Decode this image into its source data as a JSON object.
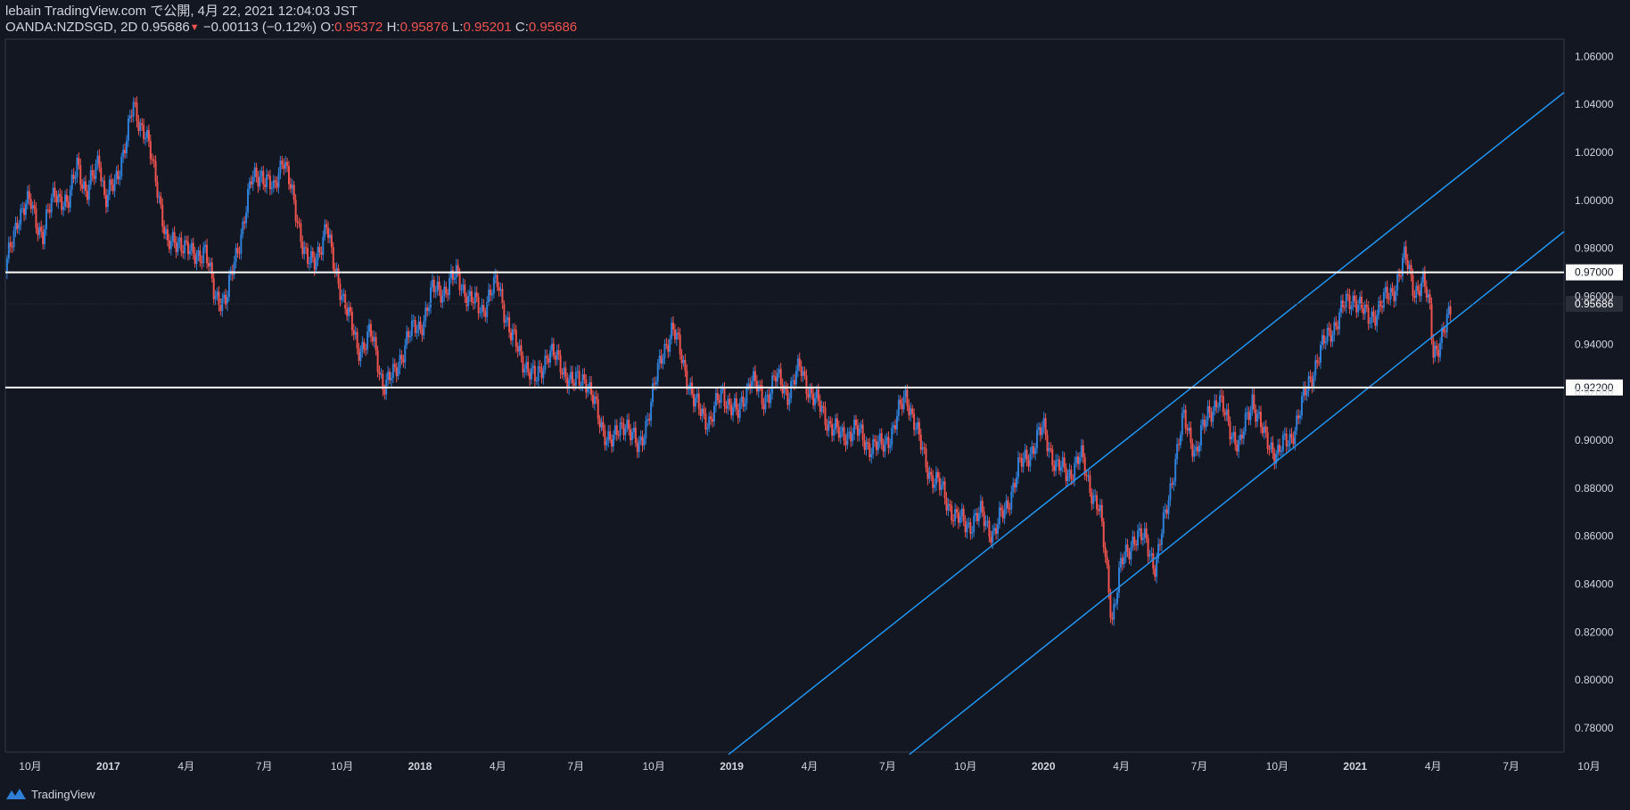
{
  "header": {
    "line1": "lebain TradingView.com で公開, 4月 22, 2021 12:04:03 JST",
    "symbol": "OANDA:NZDSGD, 2D",
    "last": "0.95686",
    "arrow": "▼",
    "change": "−0.00113 (−0.12%)",
    "o_label": "O:",
    "o_value": "0.95372",
    "h_label": "H:",
    "h_value": "0.95876",
    "l_label": "L:",
    "l_value": "0.95201",
    "c_label": "C:",
    "c_value": "0.95686"
  },
  "footer": {
    "brand": "TradingView"
  },
  "colors": {
    "background": "#131722",
    "up": "#2f7fd6",
    "down": "#ef5350",
    "line": "#ffffff",
    "trend": "#2196f3",
    "axis": "#363a45",
    "text": "#d1d4dc"
  },
  "chart_data": {
    "type": "candlestick",
    "title": "OANDA:NZDSGD, 2D",
    "ylim": [
      0.77,
      1.0672
    ],
    "y_ticks": [
      0.78,
      0.8,
      0.82,
      0.84,
      0.86,
      0.88,
      0.9,
      0.92,
      0.94,
      0.96,
      0.98,
      1.0,
      1.02,
      1.04,
      1.06
    ],
    "y_tick_labels": [
      "0.78000",
      "0.80000",
      "0.82000",
      "0.84000",
      "0.86000",
      "0.88000",
      "0.90000",
      "0.92000",
      "0.94000",
      "0.96000",
      "0.98000",
      "1.00000",
      "1.02000",
      "1.04000",
      "1.06000"
    ],
    "x_range": [
      2016.67,
      2021.67
    ],
    "x_ticks": [
      {
        "t": 2016.75,
        "label": "10月"
      },
      {
        "t": 2017.0,
        "label": "2017"
      },
      {
        "t": 2017.25,
        "label": "4月"
      },
      {
        "t": 2017.5,
        "label": "7月"
      },
      {
        "t": 2017.75,
        "label": "10月"
      },
      {
        "t": 2018.0,
        "label": "2018"
      },
      {
        "t": 2018.25,
        "label": "4月"
      },
      {
        "t": 2018.5,
        "label": "7月"
      },
      {
        "t": 2018.75,
        "label": "10月"
      },
      {
        "t": 2019.0,
        "label": "2019"
      },
      {
        "t": 2019.25,
        "label": "4月"
      },
      {
        "t": 2019.5,
        "label": "7月"
      },
      {
        "t": 2019.75,
        "label": "10月"
      },
      {
        "t": 2020.0,
        "label": "2020"
      },
      {
        "t": 2020.25,
        "label": "4月"
      },
      {
        "t": 2020.5,
        "label": "7月"
      },
      {
        "t": 2020.75,
        "label": "10月"
      },
      {
        "t": 2021.0,
        "label": "2021"
      },
      {
        "t": 2021.25,
        "label": "4月"
      },
      {
        "t": 2021.5,
        "label": "7月"
      },
      {
        "t": 2021.75,
        "label": "10月"
      }
    ],
    "price_path": [
      [
        2016.67,
        0.97
      ],
      [
        2016.71,
        0.994
      ],
      [
        2016.75,
        0.999
      ],
      [
        2016.79,
        0.985
      ],
      [
        2016.83,
        1.005
      ],
      [
        2016.87,
        0.996
      ],
      [
        2016.9,
        1.018
      ],
      [
        2016.93,
        1.0
      ],
      [
        2016.97,
        1.02
      ],
      [
        2016.99,
        0.998
      ],
      [
        2017.02,
        1.008
      ],
      [
        2017.06,
        1.025
      ],
      [
        2017.08,
        1.04
      ],
      [
        2017.12,
        1.027
      ],
      [
        2017.16,
        1.005
      ],
      [
        2017.19,
        0.98
      ],
      [
        2017.23,
        0.984
      ],
      [
        2017.27,
        0.976
      ],
      [
        2017.31,
        0.98
      ],
      [
        2017.34,
        0.96
      ],
      [
        2017.38,
        0.959
      ],
      [
        2017.42,
        0.983
      ],
      [
        2017.46,
        1.008
      ],
      [
        2017.49,
        1.012
      ],
      [
        2017.53,
        1.003
      ],
      [
        2017.56,
        1.02
      ],
      [
        2017.6,
        0.995
      ],
      [
        2017.64,
        0.975
      ],
      [
        2017.66,
        0.972
      ],
      [
        2017.7,
        0.991
      ],
      [
        2017.72,
        0.973
      ],
      [
        2017.76,
        0.958
      ],
      [
        2017.8,
        0.937
      ],
      [
        2017.84,
        0.945
      ],
      [
        2017.88,
        0.924
      ],
      [
        2017.92,
        0.927
      ],
      [
        2017.96,
        0.944
      ],
      [
        2018.0,
        0.947
      ],
      [
        2018.04,
        0.962
      ],
      [
        2018.08,
        0.963
      ],
      [
        2018.12,
        0.969
      ],
      [
        2018.16,
        0.958
      ],
      [
        2018.2,
        0.955
      ],
      [
        2018.25,
        0.966
      ],
      [
        2018.29,
        0.944
      ],
      [
        2018.33,
        0.934
      ],
      [
        2018.37,
        0.924
      ],
      [
        2018.41,
        0.937
      ],
      [
        2018.45,
        0.932
      ],
      [
        2018.49,
        0.923
      ],
      [
        2018.53,
        0.927
      ],
      [
        2018.58,
        0.906
      ],
      [
        2018.62,
        0.899
      ],
      [
        2018.66,
        0.909
      ],
      [
        2018.7,
        0.895
      ],
      [
        2018.74,
        0.915
      ],
      [
        2018.78,
        0.938
      ],
      [
        2018.81,
        0.946
      ],
      [
        2018.84,
        0.935
      ],
      [
        2018.88,
        0.915
      ],
      [
        2018.93,
        0.908
      ],
      [
        2018.97,
        0.92
      ],
      [
        2019.02,
        0.91
      ],
      [
        2019.06,
        0.927
      ],
      [
        2019.1,
        0.916
      ],
      [
        2019.14,
        0.926
      ],
      [
        2019.18,
        0.92
      ],
      [
        2019.22,
        0.93
      ],
      [
        2019.26,
        0.918
      ],
      [
        2019.31,
        0.908
      ],
      [
        2019.35,
        0.901
      ],
      [
        2019.39,
        0.905
      ],
      [
        2019.44,
        0.898
      ],
      [
        2019.48,
        0.897
      ],
      [
        2019.52,
        0.905
      ],
      [
        2019.56,
        0.92
      ],
      [
        2019.6,
        0.9
      ],
      [
        2019.64,
        0.885
      ],
      [
        2019.68,
        0.878
      ],
      [
        2019.72,
        0.867
      ],
      [
        2019.76,
        0.865
      ],
      [
        2019.8,
        0.869
      ],
      [
        2019.84,
        0.861
      ],
      [
        2019.88,
        0.872
      ],
      [
        2019.92,
        0.888
      ],
      [
        2019.96,
        0.896
      ],
      [
        2020.0,
        0.905
      ],
      [
        2020.04,
        0.889
      ],
      [
        2020.08,
        0.886
      ],
      [
        2020.12,
        0.893
      ],
      [
        2020.15,
        0.881
      ],
      [
        2020.18,
        0.87
      ],
      [
        2020.2,
        0.85
      ],
      [
        2020.22,
        0.826
      ],
      [
        2020.25,
        0.848
      ],
      [
        2020.29,
        0.86
      ],
      [
        2020.33,
        0.858
      ],
      [
        2020.36,
        0.847
      ],
      [
        2020.39,
        0.868
      ],
      [
        2020.42,
        0.89
      ],
      [
        2020.45,
        0.909
      ],
      [
        2020.49,
        0.895
      ],
      [
        2020.53,
        0.912
      ],
      [
        2020.56,
        0.917
      ],
      [
        2020.6,
        0.905
      ],
      [
        2020.63,
        0.897
      ],
      [
        2020.67,
        0.918
      ],
      [
        2020.71,
        0.9
      ],
      [
        2020.75,
        0.895
      ],
      [
        2020.79,
        0.9
      ],
      [
        2020.83,
        0.915
      ],
      [
        2020.88,
        0.935
      ],
      [
        2020.92,
        0.945
      ],
      [
        2020.96,
        0.955
      ],
      [
        2021.0,
        0.96
      ],
      [
        2021.04,
        0.95
      ],
      [
        2021.08,
        0.956
      ],
      [
        2021.12,
        0.962
      ],
      [
        2021.16,
        0.976
      ],
      [
        2021.19,
        0.963
      ],
      [
        2021.22,
        0.965
      ],
      [
        2021.24,
        0.954
      ],
      [
        2021.25,
        0.938
      ],
      [
        2021.27,
        0.94
      ],
      [
        2021.29,
        0.946
      ],
      [
        2021.31,
        0.957
      ]
    ],
    "horizontal_lines": [
      {
        "price": 0.97,
        "label": "0.97000"
      },
      {
        "price": 0.922,
        "label": "0.92200"
      }
    ],
    "last_price_label": "0.95686",
    "last_price": 0.95686,
    "channel": [
      {
        "name": "upper-channel-line",
        "from": {
          "t": 2018.99,
          "p": 0.769
        },
        "to": {
          "t": 2021.67,
          "p": 1.045
        }
      },
      {
        "name": "lower-channel-line",
        "from": {
          "t": 2019.57,
          "p": 0.769
        },
        "to": {
          "t": 2021.67,
          "p": 0.987
        }
      }
    ]
  }
}
